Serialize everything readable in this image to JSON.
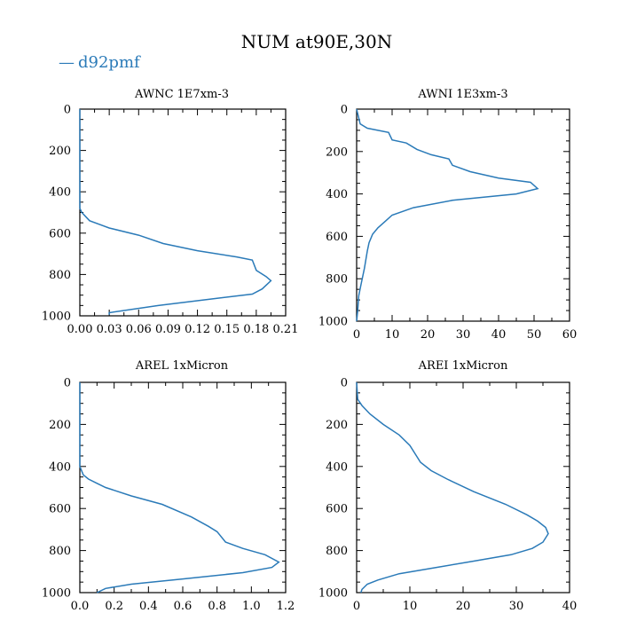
{
  "figure": {
    "title": "NUM at90E,30N",
    "legend": {
      "marker": "—",
      "label": "d92pmf"
    },
    "series_color": "#2a7ab8"
  },
  "chart_data": [
    {
      "type": "line",
      "title": "AWNC  1E7xm-3",
      "xlim": [
        0,
        0.21
      ],
      "ylim": [
        1000,
        0
      ],
      "x_ticks": [
        0,
        0.03,
        0.06,
        0.09,
        0.12,
        0.15,
        0.18,
        0.21
      ],
      "x_tick_labels": [
        "0.00",
        "0.03",
        "0.06",
        "0.09",
        "0.12",
        "0.15",
        "0.18",
        "0.21"
      ],
      "y_ticks": [
        0,
        200,
        400,
        600,
        800,
        1000
      ],
      "y_tick_labels": [
        "0",
        "200",
        "400",
        "600",
        "800",
        "1000"
      ],
      "series": [
        {
          "name": "d92pmf",
          "x": [
            0,
            0,
            0,
            0.002,
            0.006,
            0.01,
            0.03,
            0.06,
            0.085,
            0.12,
            0.16,
            0.176,
            0.18,
            0.19,
            0.195,
            0.186,
            0.176,
            0.14,
            0.08,
            0.03,
            0.03
          ],
          "y": [
            0,
            200,
            480,
            500,
            520,
            540,
            575,
            610,
            650,
            685,
            715,
            730,
            780,
            810,
            830,
            870,
            895,
            915,
            950,
            985,
            995
          ]
        }
      ]
    },
    {
      "type": "line",
      "title": "AWNI  1E3xm-3",
      "xlim": [
        0,
        60
      ],
      "ylim": [
        1000,
        0
      ],
      "x_ticks": [
        0,
        10,
        20,
        30,
        40,
        50,
        60
      ],
      "x_tick_labels": [
        "0",
        "10",
        "20",
        "30",
        "40",
        "50",
        "60"
      ],
      "y_ticks": [
        0,
        200,
        400,
        600,
        800,
        1000
      ],
      "y_tick_labels": [
        "0",
        "200",
        "400",
        "600",
        "800",
        "1000"
      ],
      "series": [
        {
          "name": "d92pmf",
          "x": [
            0,
            1,
            3,
            9,
            10,
            14,
            17,
            21,
            26,
            27,
            32,
            40,
            49,
            51,
            45,
            27,
            16,
            10,
            8,
            6,
            4.5,
            3.5,
            3,
            2.2,
            1.2,
            0.6,
            0.3,
            0
          ],
          "y": [
            0,
            70,
            90,
            110,
            145,
            160,
            190,
            215,
            235,
            265,
            295,
            325,
            345,
            375,
            400,
            430,
            465,
            500,
            530,
            560,
            590,
            630,
            670,
            750,
            830,
            880,
            950,
            1000
          ]
        }
      ]
    },
    {
      "type": "line",
      "title": "AREL  1xMicron",
      "xlim": [
        0,
        1.2
      ],
      "ylim": [
        1000,
        0
      ],
      "x_ticks": [
        0,
        0.2,
        0.4,
        0.6,
        0.8,
        1.0,
        1.2
      ],
      "x_tick_labels": [
        "0.0",
        "0.2",
        "0.4",
        "0.6",
        "0.8",
        "1.0",
        "1.2"
      ],
      "y_ticks": [
        0,
        200,
        400,
        600,
        800,
        1000
      ],
      "y_tick_labels": [
        "0",
        "200",
        "400",
        "600",
        "800",
        "1000"
      ],
      "series": [
        {
          "name": "d92pmf",
          "x": [
            0,
            0,
            0.02,
            0.05,
            0.1,
            0.15,
            0.3,
            0.48,
            0.65,
            0.75,
            0.8,
            0.85,
            0.95,
            1.08,
            1.16,
            1.12,
            0.95,
            0.6,
            0.3,
            0.15,
            0.1
          ],
          "y": [
            0,
            400,
            440,
            460,
            480,
            500,
            540,
            580,
            640,
            685,
            710,
            760,
            790,
            820,
            855,
            880,
            905,
            935,
            960,
            980,
            1000
          ]
        }
      ]
    },
    {
      "type": "line",
      "title": "AREI  1xMicron",
      "xlim": [
        0,
        40
      ],
      "ylim": [
        1000,
        0
      ],
      "x_ticks": [
        0,
        10,
        20,
        30,
        40
      ],
      "x_tick_labels": [
        "0",
        "10",
        "20",
        "30",
        "40"
      ],
      "y_ticks": [
        0,
        200,
        400,
        600,
        800,
        1000
      ],
      "y_tick_labels": [
        "0",
        "200",
        "400",
        "600",
        "800",
        "1000"
      ],
      "series": [
        {
          "name": "d92pmf",
          "x": [
            0,
            0.2,
            1,
            2.5,
            5,
            8,
            10,
            11,
            12,
            14,
            17,
            22,
            28,
            32,
            34,
            35.5,
            36,
            35,
            33,
            29,
            22,
            15,
            8,
            4,
            2,
            1,
            0.8
          ],
          "y": [
            0,
            80,
            110,
            150,
            200,
            250,
            300,
            340,
            380,
            420,
            460,
            520,
            580,
            630,
            660,
            690,
            720,
            760,
            790,
            820,
            850,
            880,
            910,
            940,
            960,
            985,
            1000
          ]
        }
      ]
    }
  ]
}
